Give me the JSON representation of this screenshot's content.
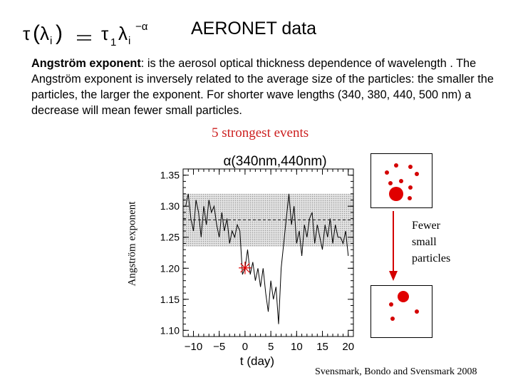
{
  "slide": {
    "formula": {
      "lhs_func": "τ",
      "lhs_arg": "λ",
      "lhs_sub": "i",
      "rhs_coef": "τ",
      "rhs_coef_sub": "1",
      "rhs_base": "λ",
      "rhs_base_sub": "i",
      "rhs_exp": "−α"
    },
    "title": "AERONET data",
    "description": {
      "term": "Angström exponent",
      "text": ": is the aerosol optical thickness dependence of wavelength . The Angström exponent is inversely related to the average size of the particles: the smaller the particles, the larger the exponent. For shorter wave lengths (340, 380, 440, 500 nm) a decrease will mean fewer small particles."
    },
    "events_label": "5 strongest events",
    "arrow_label": [
      "Fewer",
      "small",
      "particles"
    ],
    "citation": "Svensmark, Bondo and Svensmark 2008",
    "colors": {
      "red": "#cc1f1f",
      "dot": "#d40000",
      "shade": "#bdbdbd"
    }
  },
  "chart_data": {
    "type": "line",
    "title": "α(340nm,440nm)",
    "xlabel": "t (day)",
    "ylabel": "Angström exponent",
    "xlim": [
      -12,
      21
    ],
    "ylim": [
      1.09,
      1.36
    ],
    "xticks": [
      -10,
      -5,
      0,
      5,
      10,
      15,
      20
    ],
    "yticks": [
      1.1,
      1.15,
      1.2,
      1.25,
      1.3,
      1.35
    ],
    "shaded_band": [
      1.235,
      1.32
    ],
    "dashed_line": 1.278,
    "marker": {
      "x": 0,
      "y": 1.2,
      "symbol": "✳"
    },
    "series": [
      {
        "name": "Angström exponent",
        "x": [
          -11.5,
          -11,
          -10.5,
          -10,
          -9.5,
          -9,
          -8.5,
          -8,
          -7.5,
          -7,
          -6.5,
          -6,
          -5.5,
          -5,
          -4.5,
          -4,
          -3.5,
          -3,
          -2.5,
          -2,
          -1.5,
          -1,
          -0.5,
          0,
          0.5,
          1,
          1.5,
          2,
          2.5,
          3,
          3.5,
          4,
          4.5,
          5,
          5.5,
          6,
          6.5,
          7,
          7.5,
          8,
          8.5,
          9,
          9.5,
          10,
          10.5,
          11,
          11.5,
          12,
          12.5,
          13,
          13.5,
          14,
          14.5,
          15,
          15.5,
          16,
          16.5,
          17,
          17.5,
          18,
          18.5,
          19,
          19.5,
          20
        ],
        "values": [
          1.3,
          1.32,
          1.28,
          1.26,
          1.31,
          1.29,
          1.25,
          1.3,
          1.27,
          1.31,
          1.29,
          1.3,
          1.27,
          1.25,
          1.29,
          1.26,
          1.28,
          1.24,
          1.26,
          1.25,
          1.27,
          1.26,
          1.19,
          1.2,
          1.23,
          1.19,
          1.21,
          1.18,
          1.2,
          1.17,
          1.2,
          1.16,
          1.13,
          1.18,
          1.15,
          1.17,
          1.11,
          1.2,
          1.24,
          1.28,
          1.32,
          1.27,
          1.3,
          1.24,
          1.26,
          1.22,
          1.27,
          1.25,
          1.28,
          1.29,
          1.24,
          1.27,
          1.25,
          1.23,
          1.27,
          1.25,
          1.28,
          1.24,
          1.27,
          1.25,
          1.25,
          1.24,
          1.26,
          1.22
        ]
      }
    ]
  }
}
